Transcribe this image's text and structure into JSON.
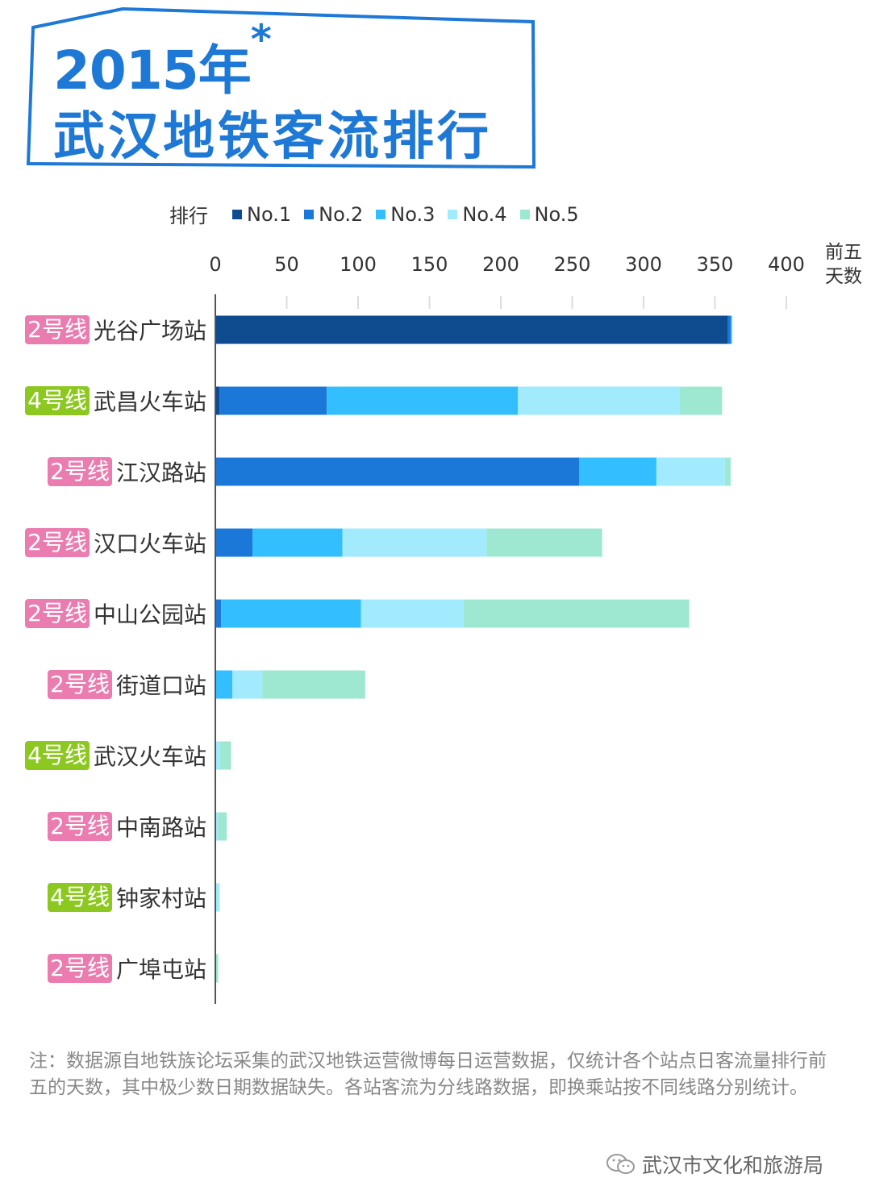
{
  "title": {
    "year": "2015年",
    "asterisk": "*",
    "main": "武汉地铁客流排行"
  },
  "legend": {
    "title": "排行",
    "items": [
      "No.1",
      "No.2",
      "No.3",
      "No.4",
      "No.5"
    ]
  },
  "unit_label": [
    "前五",
    "天数"
  ],
  "colors": {
    "No.1": "#0f4c8f",
    "No.2": "#1c78d8",
    "No.3": "#33bfff",
    "No.4": "#a2ebfe",
    "No.5": "#9ee8d2",
    "line2": "#ea7cb0",
    "line4": "#8cc820",
    "title": "#1e78d6"
  },
  "chart_data": {
    "type": "bar",
    "orientation": "horizontal",
    "stacked": true,
    "title": "2015年*武汉地铁客流排行",
    "xlabel": "前五天数",
    "xlim": [
      0,
      400
    ],
    "xticks": [
      "0",
      "50",
      "100",
      "150",
      "200",
      "250",
      "300",
      "350",
      "400"
    ],
    "categories": [
      {
        "line": "2号线",
        "line_color": "line2",
        "station": "光谷广场站"
      },
      {
        "line": "4号线",
        "line_color": "line4",
        "station": "武昌火车站"
      },
      {
        "line": "2号线",
        "line_color": "line2",
        "station": "江汉路站"
      },
      {
        "line": "2号线",
        "line_color": "line2",
        "station": "汉口火车站"
      },
      {
        "line": "2号线",
        "line_color": "line2",
        "station": "中山公园站"
      },
      {
        "line": "2号线",
        "line_color": "line2",
        "station": "街道口站"
      },
      {
        "line": "4号线",
        "line_color": "line4",
        "station": "武汉火车站"
      },
      {
        "line": "2号线",
        "line_color": "line2",
        "station": "中南路站"
      },
      {
        "line": "4号线",
        "line_color": "line4",
        "station": "钟家村站"
      },
      {
        "line": "2号线",
        "line_color": "line2",
        "station": "广埠屯站"
      }
    ],
    "series": [
      {
        "name": "No.1",
        "values": [
          359,
          3,
          0,
          0,
          0,
          0,
          0,
          0,
          0,
          0
        ]
      },
      {
        "name": "No.2",
        "values": [
          2,
          75,
          255,
          26,
          4,
          0,
          0,
          0,
          0,
          0
        ]
      },
      {
        "name": "No.3",
        "values": [
          1,
          134,
          54,
          63,
          98,
          12,
          0,
          0,
          0,
          0
        ]
      },
      {
        "name": "No.4",
        "values": [
          0,
          113,
          48,
          101,
          72,
          21,
          3,
          2,
          3,
          0
        ]
      },
      {
        "name": "No.5",
        "values": [
          0,
          30,
          4,
          81,
          158,
          72,
          8,
          6,
          0,
          2
        ]
      }
    ],
    "legend_position": "top",
    "grid": false
  },
  "note": "注：数据源自地铁族论坛采集的武汉地铁运营微博每日运营数据，仅统计各个站点日客流量排行前五的天数，其中极少数日期数据缺失。各站客流为分线路数据，即换乘站按不同线路分别统计。",
  "credit": "武汉市文化和旅游局"
}
